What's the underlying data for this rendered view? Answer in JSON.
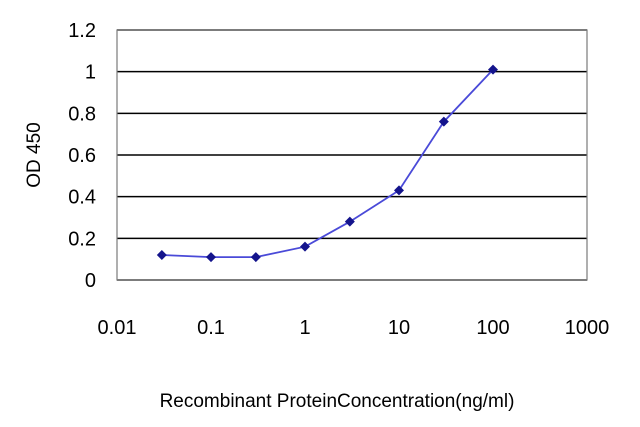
{
  "chart_data": {
    "type": "line",
    "title": "",
    "xlabel": "Recombinant ProteinConcentration(ng/ml)",
    "ylabel": "OD 450",
    "x_scale": "log",
    "xlim": [
      0.01,
      1000
    ],
    "ylim": [
      0,
      1.2
    ],
    "x_ticks": [
      "0.01",
      "0.1",
      "1",
      "10",
      "100",
      "1000"
    ],
    "y_ticks": [
      "0",
      "0.2",
      "0.4",
      "0.6",
      "0.8",
      "1",
      "1.2"
    ],
    "grid": "horizontal",
    "legend": "none",
    "series": [
      {
        "x": [
          0.03,
          0.1,
          0.3,
          1,
          3,
          10,
          30,
          100
        ],
        "y": [
          0.12,
          0.11,
          0.11,
          0.16,
          0.28,
          0.43,
          0.76,
          1.01
        ]
      }
    ],
    "colors": {
      "line": "#4a4ad8",
      "marker": "#14148c",
      "grid": "#000000",
      "plot_background": "#ffffff"
    }
  }
}
